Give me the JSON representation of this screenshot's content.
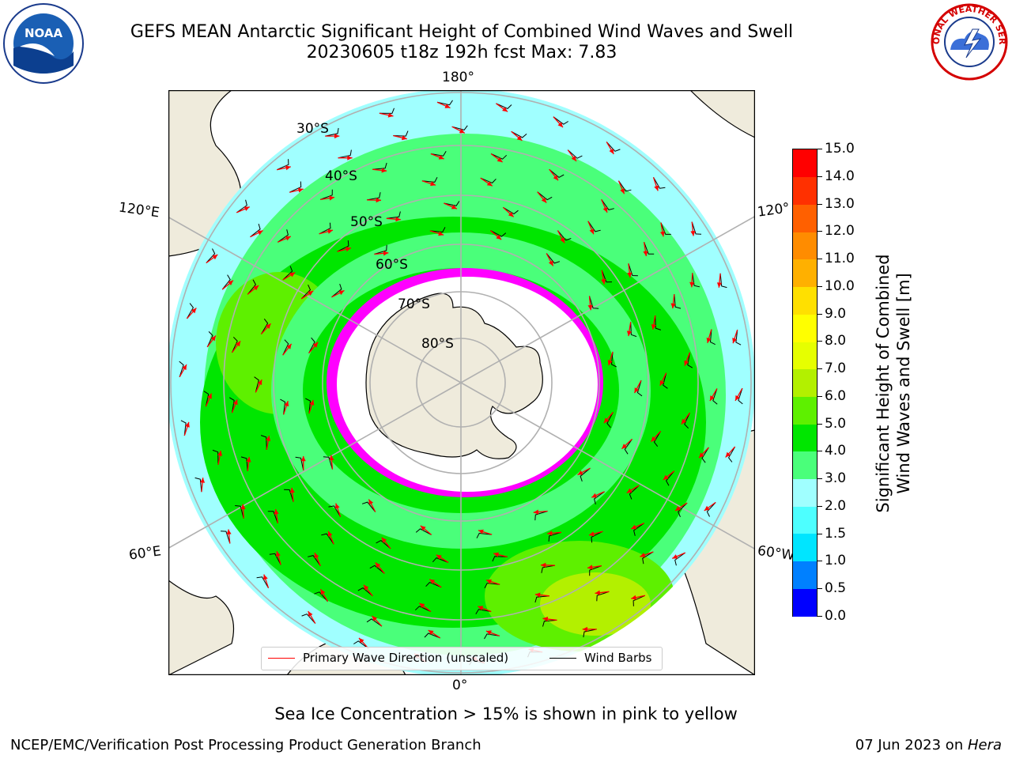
{
  "title": {
    "line1": "GEFS MEAN Antarctic Significant Height of Combined Wind Waves and Swell",
    "line2": "20230605 t18z 192h fcst   Max: 7.83"
  },
  "logos": {
    "left": "NOAA",
    "right": "NATIONAL WEATHER SERVICE"
  },
  "map": {
    "projection": "south polar stereographic",
    "longitude_labels": {
      "top": "180°",
      "bottom": "0°",
      "left_upper": "120°E",
      "left_lower": "60°E",
      "right_upper": "120°",
      "right_lower": "60°W"
    },
    "latitude_labels": [
      "30°S",
      "40°S",
      "50°S",
      "60°S",
      "70°S",
      "80°S"
    ],
    "colors": {
      "land": "#efebdc",
      "ocean_3m": "#4aff7a",
      "ocean_2m": "#a0ffff",
      "ice": "#ff00ff",
      "arrow": "#ff0000"
    }
  },
  "colorbar": {
    "title_line1": "Significant Height of Combined",
    "title_line2": "Wind Waves and Swell [m]",
    "ticks": [
      "0.0",
      "0.5",
      "1.0",
      "1.5",
      "2.0",
      "3.0",
      "4.0",
      "5.0",
      "6.0",
      "7.0",
      "8.0",
      "9.0",
      "10.0",
      "11.0",
      "12.0",
      "13.0",
      "14.0",
      "15.0"
    ],
    "colors": [
      "#0000ff",
      "#0080ff",
      "#00e5ff",
      "#4dffff",
      "#a0ffff",
      "#4aff7a",
      "#00e600",
      "#5ef000",
      "#b3f000",
      "#e6ff00",
      "#ffff00",
      "#ffe000",
      "#ffb000",
      "#ff8c00",
      "#ff6000",
      "#ff3000",
      "#ff0000"
    ]
  },
  "legend": {
    "wave": {
      "label": "Primary Wave Direction (unscaled)",
      "color": "#ff0000"
    },
    "wind": {
      "label": "Wind Barbs",
      "color": "#000000"
    }
  },
  "footer": {
    "caption": "Sea Ice Concentration > 15% is shown in pink to yellow",
    "credit": "NCEP/EMC/Verification Post Processing Product Generation Branch",
    "date_text": "07 Jun 2023 on ",
    "host": "Hera"
  }
}
